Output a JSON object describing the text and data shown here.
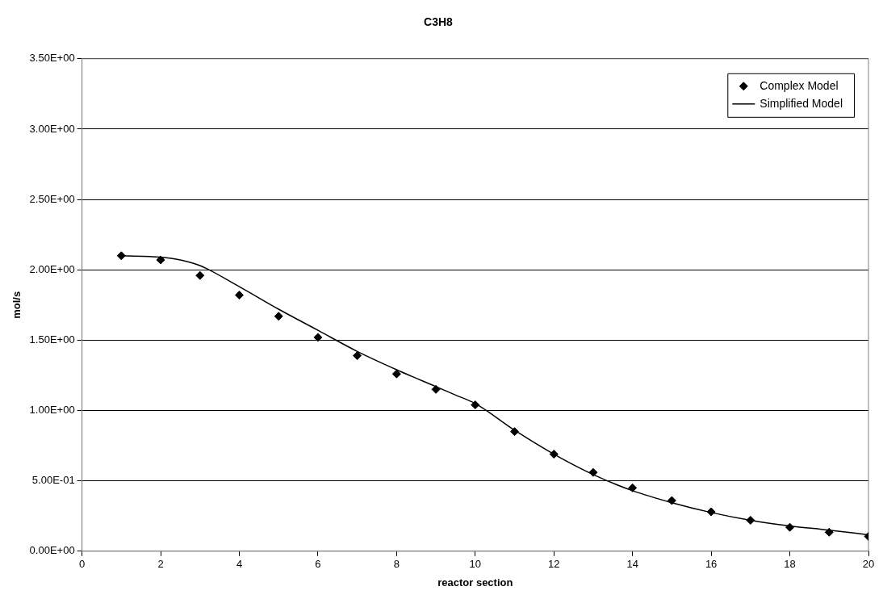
{
  "chart_data": {
    "type": "scatter",
    "title": "C3H8",
    "xlabel": "reactor section",
    "ylabel": "mol/s",
    "xlim": [
      0,
      20
    ],
    "xticks": [
      0,
      2,
      4,
      6,
      8,
      10,
      12,
      14,
      16,
      18,
      20
    ],
    "ylim": [
      0,
      3.5
    ],
    "yticks": [
      {
        "value": 0,
        "label": "0.00E+00"
      },
      {
        "value": 0.5,
        "label": "5.00E-01"
      },
      {
        "value": 1,
        "label": "1.00E+00"
      },
      {
        "value": 1.5,
        "label": "1.50E+00"
      },
      {
        "value": 2,
        "label": "2.00E+00"
      },
      {
        "value": 2.5,
        "label": "2.50E+00"
      },
      {
        "value": 3,
        "label": "3.00E+00"
      },
      {
        "value": 3.5,
        "label": "3.50E+00"
      }
    ],
    "grid": "y",
    "legend": "top right",
    "series": [
      {
        "name": "Complex Model",
        "type": "scatter",
        "marker": "diamond",
        "color": "#000000",
        "x": [
          1,
          2,
          3,
          4,
          5,
          6,
          7,
          8,
          9,
          10,
          11,
          12,
          13,
          14,
          15,
          16,
          17,
          18,
          19,
          20
        ],
        "values": [
          2.1,
          2.07,
          1.96,
          1.82,
          1.67,
          1.52,
          1.39,
          1.26,
          1.15,
          1.04,
          0.85,
          0.69,
          0.56,
          0.45,
          0.36,
          0.28,
          0.22,
          0.17,
          0.135,
          0.105
        ]
      },
      {
        "name": "Simplified Model",
        "type": "line",
        "marker": "none",
        "line_style": "solid",
        "color": "#000000",
        "x": [
          1,
          2,
          2.5,
          3,
          4,
          5,
          6,
          7,
          8,
          9,
          9.5,
          10,
          11,
          12,
          13,
          14,
          15,
          16,
          17,
          18,
          19,
          20
        ],
        "values": [
          2.1,
          2.09,
          2.07,
          2.03,
          1.88,
          1.72,
          1.57,
          1.42,
          1.29,
          1.17,
          1.11,
          1.05,
          0.86,
          0.69,
          0.545,
          0.43,
          0.345,
          0.275,
          0.22,
          0.18,
          0.15,
          0.117
        ]
      }
    ]
  }
}
